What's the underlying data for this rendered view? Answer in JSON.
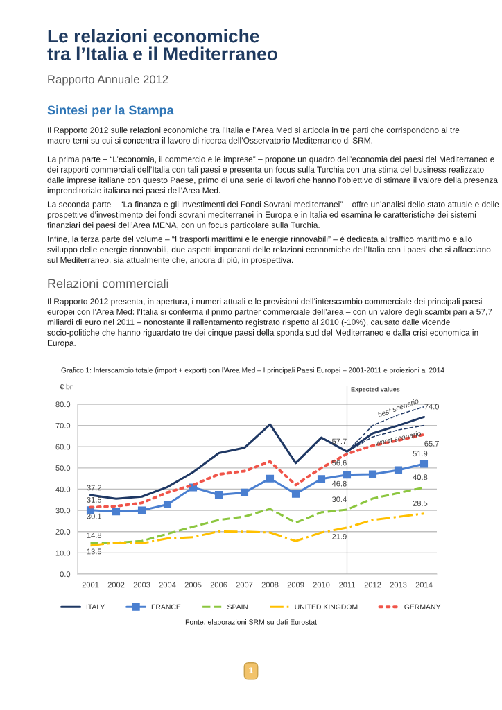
{
  "chart_data": {
    "type": "line",
    "title": "Le relazioni economiche\ntra l’Italia e il Mediterraneo",
    "subtitle": "Rapporto Annuale 2012",
    "ylabel": "€ bn",
    "annotations": [
      "Sintesi per la Stampa",
      "Il Rapporto 2012 sulle relazioni economiche tra l’Italia e l’Area Med si articola in tre parti che corrispondono ai tre macro-temi su cui si concentra il lavoro di ricerca dell’Osservatorio Mediterraneo di SRM.",
      "La prima parte – “L’economia, il commercio e le imprese” – propone un quadro dell’economia dei paesi del Mediterraneo e dei rapporti commerciali dell’Italia con tali paesi e presenta un focus sulla Turchia con una stima del business realizzato dalle imprese italiane con questo Paese, primo di una serie di lavori che hanno l’obiettivo di stimare il valore della presenza imprenditoriale italiana nei paesi dell’Area Med.",
      "La seconda parte – “La finanza e gli investimenti dei Fondi Sovrani mediterranei” – offre un’analisi dello stato attuale e delle prospettive d’investimento dei fondi sovrani mediterranei in Europa e in Italia ed esamina le caratteristiche dei sistemi finanziari dei paesi dell’Area MENA, con un focus particolare sulla Turchia.",
      "Infine, la terza parte del volume – “I trasporti marittimi e le energie rinnovabili” – è dedicata al traffico marittimo e allo sviluppo delle energie rinnovabili, due aspetti importanti delle relazioni economiche dell’Italia con i paesi che si affacciano sul Mediterraneo, sia attualmente che, ancora di più, in prospettiva.",
      "Relazioni commerciali",
      "Il Rapporto 2012 presenta, in apertura, i numeri attuali e le previsioni dell’interscambio commerciale dei principali paesi europei con l’Area Med: l’Italia si conferma il primo partner commerciale dell’area – con un valore degli scambi pari a 57,7 miliardi di euro nel 2011 – nonostante il rallentamento registrato rispetto al 2010 (-10%), causato dalle vicende socio-politiche che hanno riguardato tre dei cinque paesi della sponda sud del Mediterraneo e dalla crisi economica in Europa.",
      "Grafico 1: Interscambio totale (import + export) con l’Area Med – I principali Paesi Europei – 2001-2011 e proiezioni al 2014",
      "Fonte: elaborazioni SRM su dati Eurostat",
      "1"
    ],
    "categories": [
      "2001",
      "2002",
      "2003",
      "2004",
      "2005",
      "2006",
      "2007",
      "2008",
      "2009",
      "2010",
      "2011",
      "2012",
      "2013",
      "2014"
    ],
    "series": [
      {
        "name": "ITALY",
        "color": "#1f3864",
        "line_style": "solid",
        "values": [
          37.2,
          35.5,
          36.5,
          41.0,
          48.0,
          57.0,
          59.5,
          70.5,
          52.3,
          64.3,
          57.7,
          66.3,
          70.0,
          74.0
        ],
        "value_labels": [
          "37.2",
          null,
          null,
          null,
          null,
          null,
          null,
          null,
          null,
          null,
          "57.7",
          null,
          null,
          "74.0"
        ]
      },
      {
        "name": "FRANCE",
        "color": "#4a7fd0",
        "line_style": "solid",
        "marker": "square",
        "values": [
          30.1,
          29.5,
          30.0,
          32.8,
          40.8,
          37.4,
          38.4,
          45.0,
          37.8,
          44.8,
          46.8,
          47.0,
          49.0,
          51.9
        ],
        "value_labels": [
          "30.1",
          null,
          null,
          null,
          null,
          null,
          null,
          null,
          null,
          null,
          "46.8",
          null,
          null,
          "51.9"
        ]
      },
      {
        "name": "SPAIN",
        "color": "#8cc63f",
        "line_style": "dashed",
        "values": [
          14.8,
          14.8,
          15.6,
          19.0,
          22.3,
          25.5,
          27.1,
          30.7,
          24.2,
          29.1,
          30.4,
          35.6,
          38.2,
          40.8
        ],
        "value_labels": [
          "14.8",
          null,
          null,
          null,
          null,
          null,
          null,
          null,
          null,
          null,
          "30.4",
          null,
          null,
          "40.8"
        ]
      },
      {
        "name": "UNITED KINGDOM",
        "color": "#ffc000",
        "line_style": "dashdot",
        "values": [
          13.5,
          14.8,
          14.5,
          16.8,
          17.4,
          20.1,
          20.0,
          19.6,
          15.6,
          19.6,
          21.9,
          25.5,
          27.0,
          28.5
        ],
        "value_labels": [
          "13.5",
          null,
          null,
          null,
          null,
          null,
          null,
          null,
          null,
          null,
          "21.9",
          null,
          null,
          "28.5"
        ]
      },
      {
        "name": "GERMANY",
        "color": "#f0554a",
        "line_style": "dotted",
        "values": [
          31.5,
          32.0,
          33.5,
          38.5,
          42.0,
          47.0,
          48.5,
          53.0,
          42.0,
          50.0,
          56.6,
          60.5,
          63.0,
          65.7
        ],
        "value_labels": [
          "31.5",
          null,
          null,
          null,
          null,
          null,
          null,
          null,
          null,
          null,
          "56.6",
          null,
          null,
          "65.7"
        ]
      },
      {
        "name": "best scenario",
        "color": "#1f3864",
        "line_style": "dashed",
        "values": [
          null,
          null,
          null,
          null,
          null,
          null,
          null,
          null,
          null,
          null,
          57.7,
          70.0,
          75.0,
          78.8
        ]
      },
      {
        "name": "worst scenario",
        "color": "#1f3864",
        "line_style": "dashed",
        "values": [
          null,
          null,
          null,
          null,
          null,
          null,
          null,
          null,
          null,
          null,
          57.7,
          64.6,
          67.9,
          70.0
        ]
      }
    ],
    "ylim": [
      0,
      80
    ],
    "yticks": [
      {
        "value": 0,
        "label": "0.0"
      },
      {
        "value": 10,
        "label": "10.0"
      },
      {
        "value": 20,
        "label": "20.0"
      },
      {
        "value": 30,
        "label": "30.0"
      },
      {
        "value": 40,
        "label": "40.0"
      },
      {
        "value": 50,
        "label": "50.0"
      },
      {
        "value": 60,
        "label": "60.0"
      },
      {
        "value": 70,
        "label": "70.0"
      },
      {
        "value": 80,
        "label": "80.0"
      }
    ],
    "ref_lines": [
      {
        "axis": "x",
        "value": "2011",
        "label": "Expected values",
        "color": "#7f7f7f"
      }
    ],
    "grid": "y",
    "legend": "bottom"
  }
}
